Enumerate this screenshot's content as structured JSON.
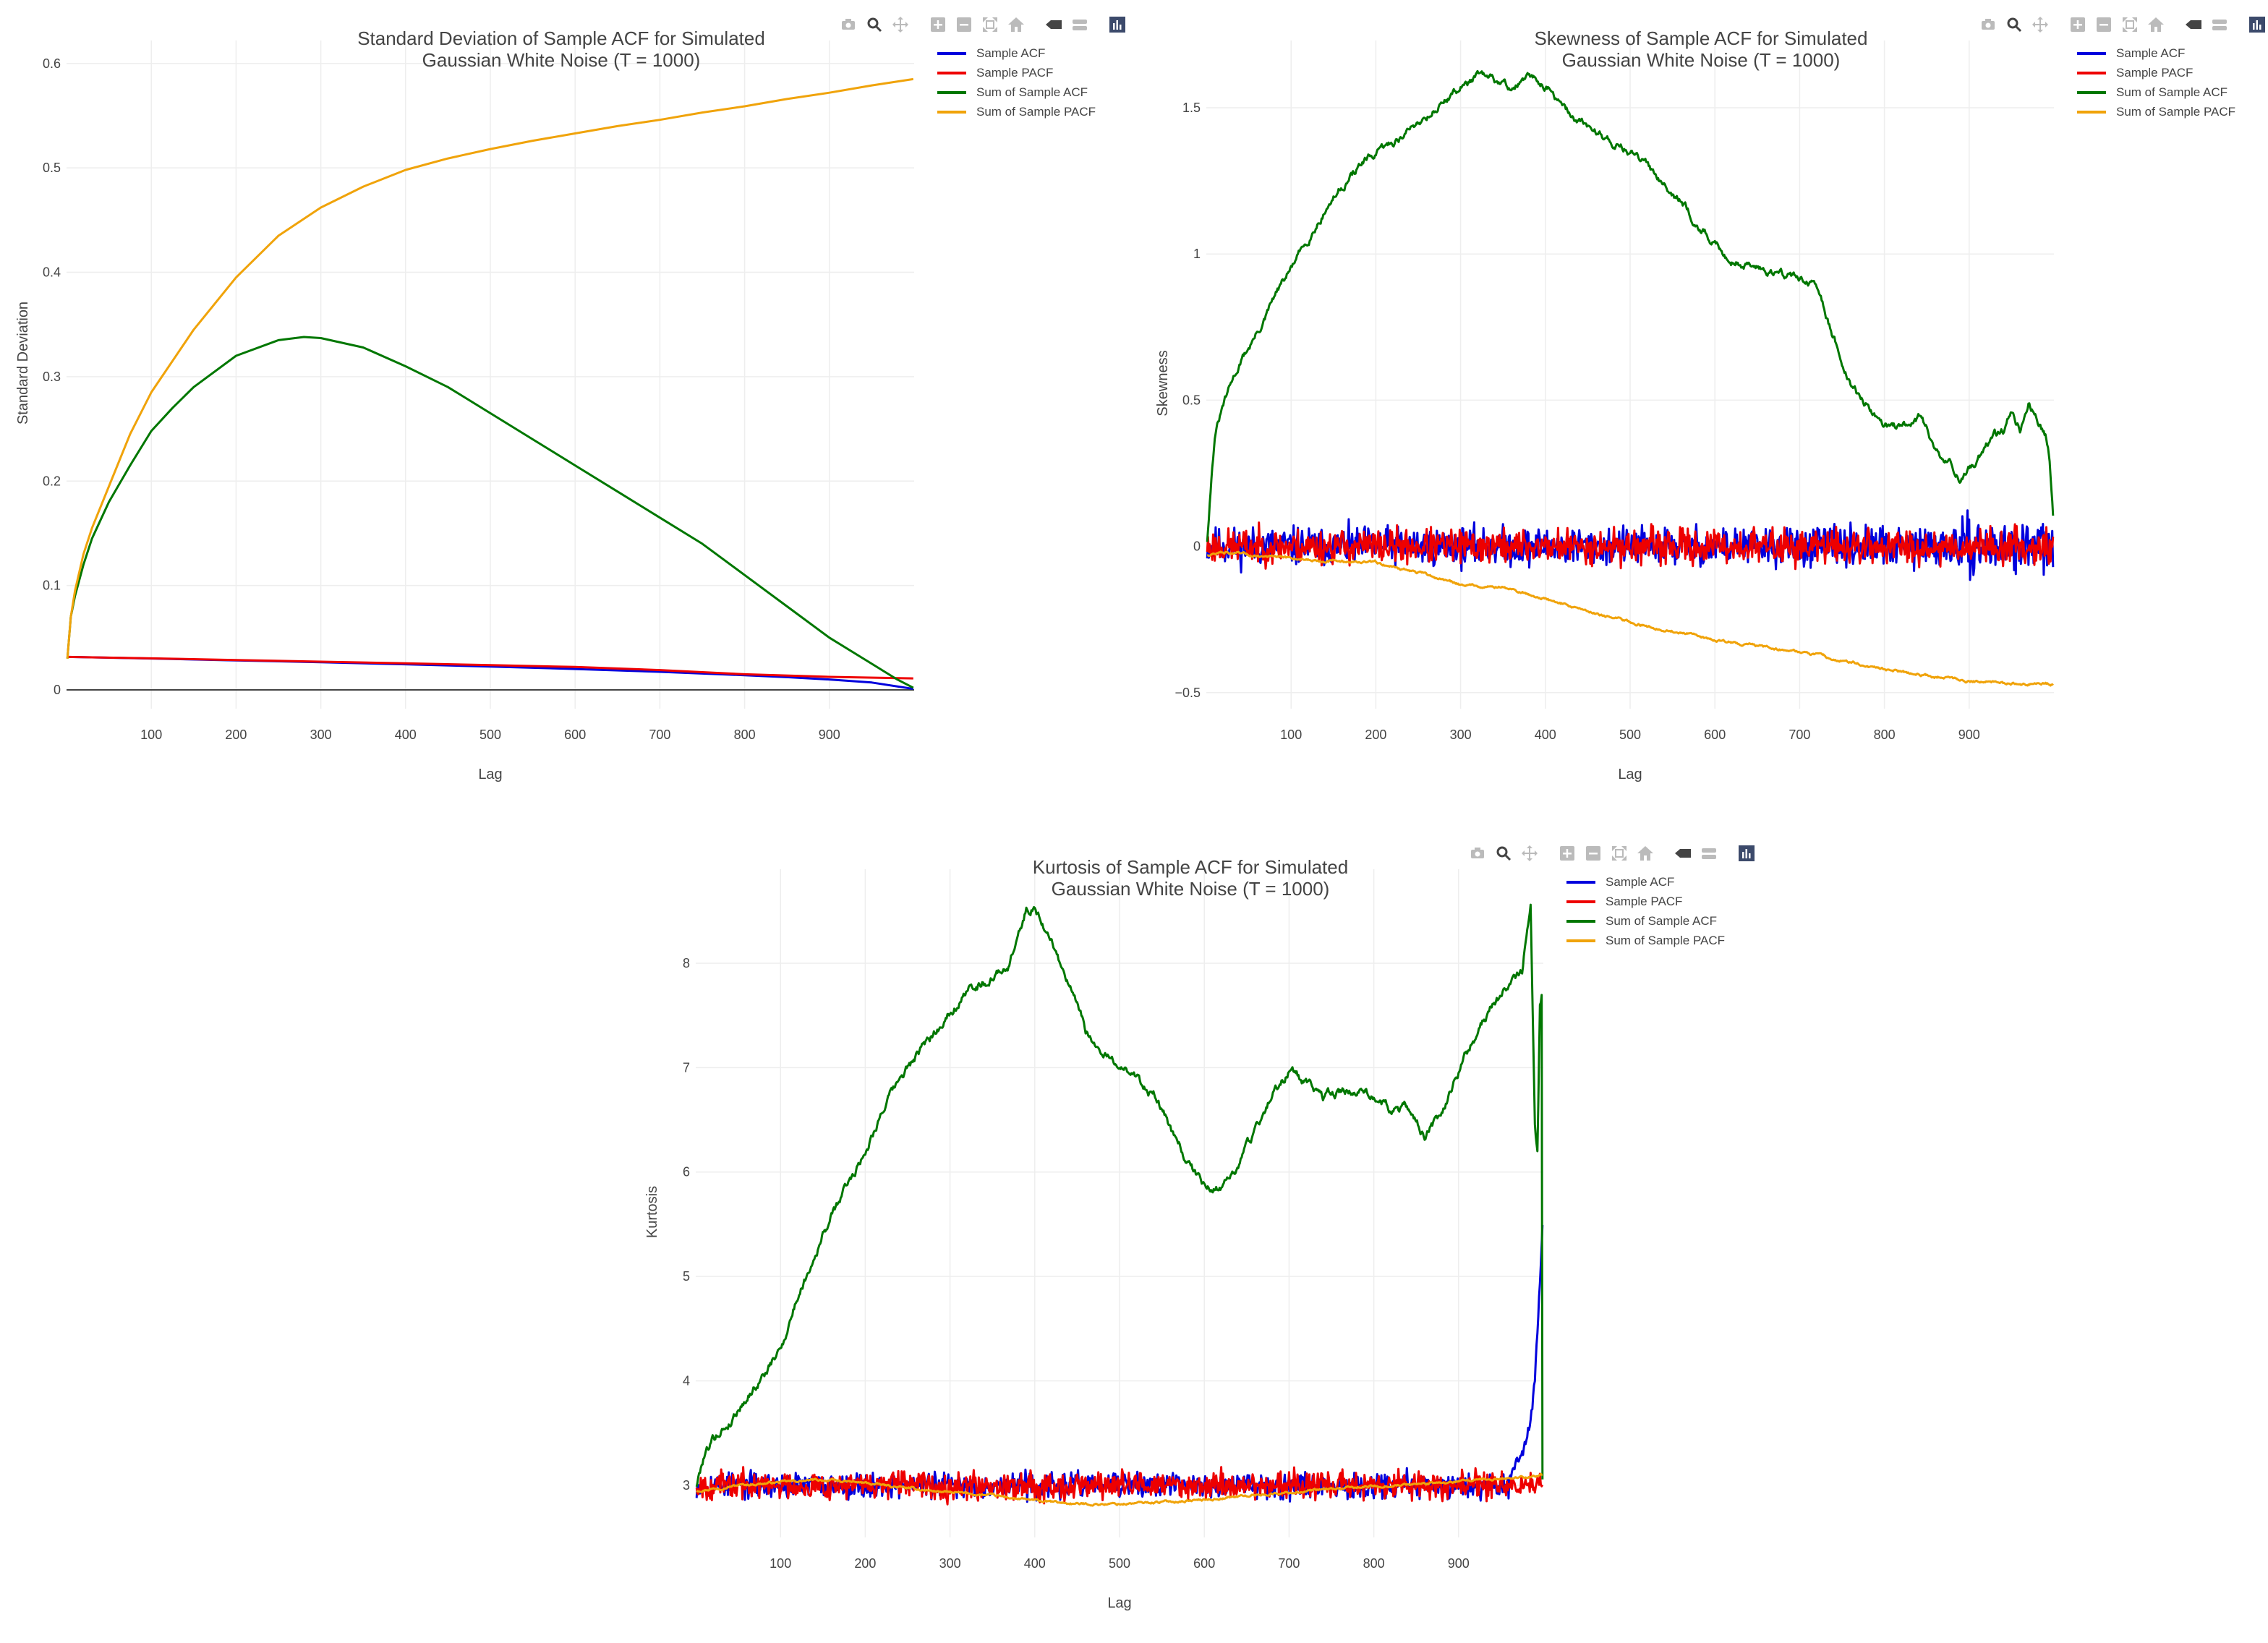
{
  "colors": {
    "acf": "#0000dd",
    "pacf": "#ee0000",
    "sum_acf": "#007700",
    "sum_pacf": "#f0a30a",
    "grid": "#eeeeee",
    "zero_line": "#444444",
    "text": "#444444",
    "modebar_icon": "#bbbbbb",
    "modebar_logo": "#3c4a6b"
  },
  "modebar": {
    "buttons": [
      {
        "name": "camera-icon",
        "title": "Download plot as a png"
      },
      {
        "name": "zoom-icon",
        "title": "Zoom"
      },
      {
        "name": "pan-icon",
        "title": "Pan"
      },
      {
        "name": "zoom-in-icon",
        "title": "Zoom in"
      },
      {
        "name": "zoom-out-icon",
        "title": "Zoom out"
      },
      {
        "name": "autoscale-icon",
        "title": "Autoscale"
      },
      {
        "name": "home-icon",
        "title": "Reset axes"
      },
      {
        "name": "spike-lines-icon",
        "title": "Toggle Spike Lines"
      },
      {
        "name": "hover-compare-icon",
        "title": "Compare data on hover"
      },
      {
        "name": "plotly-logo-icon",
        "title": "Produced with Plotly"
      }
    ]
  },
  "chart_data": [
    {
      "id": "std",
      "type": "line",
      "title": [
        "Standard Deviation of Sample ACF for Simulated",
        "Gaussian White Noise (T = 1000)"
      ],
      "xlabel": "Lag",
      "ylabel": "Standard Deviation",
      "xlim": [
        0,
        1000
      ],
      "ylim": [
        -0.018,
        0.622
      ],
      "xticks": [
        100,
        200,
        300,
        400,
        500,
        600,
        700,
        800,
        900
      ],
      "yticks": [
        0,
        0.1,
        0.2,
        0.3,
        0.4,
        0.5,
        0.6
      ],
      "ytick_labels": [
        "0",
        "0.1",
        "0.2",
        "0.3",
        "0.4",
        "0.5",
        "0.6"
      ],
      "zero_line": true,
      "legend": [
        "Sample ACF",
        "Sample PACF",
        "Sum of Sample ACF",
        "Sum of Sample PACF"
      ],
      "series": [
        {
          "name": "Sample ACF",
          "key": "acf",
          "x": [
            1,
            100,
            200,
            300,
            400,
            500,
            600,
            700,
            800,
            850,
            900,
            950,
            999
          ],
          "y": [
            0.0316,
            0.0301,
            0.0283,
            0.0265,
            0.0245,
            0.0224,
            0.02,
            0.0173,
            0.0141,
            0.0122,
            0.01,
            0.0071,
            0.001
          ]
        },
        {
          "name": "Sample PACF",
          "key": "pacf",
          "x": [
            1,
            100,
            200,
            300,
            400,
            500,
            600,
            700,
            800,
            900,
            999
          ],
          "y": [
            0.0316,
            0.0302,
            0.0286,
            0.027,
            0.0254,
            0.0237,
            0.022,
            0.019,
            0.015,
            0.0125,
            0.011
          ]
        },
        {
          "name": "Sum of Sample ACF",
          "key": "sum_acf",
          "x": [
            1,
            5,
            10,
            20,
            30,
            50,
            75,
            100,
            125,
            150,
            200,
            250,
            280,
            300,
            350,
            400,
            450,
            500,
            550,
            600,
            650,
            700,
            750,
            800,
            850,
            900,
            950,
            980,
            999
          ],
          "y": [
            0.03,
            0.07,
            0.09,
            0.12,
            0.145,
            0.18,
            0.215,
            0.248,
            0.27,
            0.29,
            0.32,
            0.335,
            0.338,
            0.337,
            0.328,
            0.31,
            0.29,
            0.265,
            0.24,
            0.215,
            0.19,
            0.165,
            0.14,
            0.11,
            0.08,
            0.05,
            0.025,
            0.01,
            0.002
          ]
        },
        {
          "name": "Sum of Sample PACF",
          "key": "sum_pacf",
          "x": [
            1,
            5,
            10,
            20,
            30,
            50,
            75,
            100,
            150,
            200,
            250,
            300,
            350,
            400,
            450,
            500,
            550,
            600,
            650,
            700,
            750,
            800,
            850,
            900,
            950,
            999
          ],
          "y": [
            0.03,
            0.07,
            0.095,
            0.13,
            0.155,
            0.195,
            0.245,
            0.285,
            0.345,
            0.395,
            0.435,
            0.462,
            0.482,
            0.498,
            0.509,
            0.518,
            0.526,
            0.533,
            0.54,
            0.546,
            0.553,
            0.559,
            0.566,
            0.572,
            0.579,
            0.585
          ]
        }
      ]
    },
    {
      "id": "skew",
      "type": "line",
      "title": [
        "Skewness of Sample ACF for Simulated",
        "Gaussian White Noise (T = 1000)"
      ],
      "xlabel": "Lag",
      "ylabel": "Skewness",
      "xlim": [
        0,
        1000
      ],
      "ylim": [
        -0.555,
        1.73
      ],
      "xticks": [
        100,
        200,
        300,
        400,
        500,
        600,
        700,
        800,
        900
      ],
      "yticks": [
        -0.5,
        0,
        0.5,
        1,
        1.5
      ],
      "ytick_labels": [
        "−0.5",
        "0",
        "0.5",
        "1",
        "1.5"
      ],
      "zero_line": false,
      "legend": [
        "Sample ACF",
        "Sample PACF",
        "Sum of Sample ACF",
        "Sum of Sample PACF"
      ],
      "series": [
        {
          "name": "Sample ACF",
          "key": "acf",
          "noise": {
            "center": 0.0,
            "amp": 0.05,
            "seed": 11,
            "tail_amp": 0.065
          }
        },
        {
          "name": "Sample PACF",
          "key": "pacf",
          "noise": {
            "center": 0.0,
            "amp": 0.045,
            "seed": 23
          }
        },
        {
          "name": "Sum of Sample ACF",
          "key": "sum_acf",
          "noise_amp": 0.018,
          "seed": 31,
          "x": [
            1,
            5,
            10,
            20,
            30,
            40,
            50,
            60,
            70,
            80,
            90,
            100,
            120,
            140,
            160,
            180,
            200,
            220,
            250,
            280,
            300,
            320,
            340,
            360,
            380,
            400,
            420,
            440,
            460,
            480,
            500,
            520,
            540,
            560,
            580,
            600,
            620,
            640,
            660,
            680,
            700,
            720,
            740,
            760,
            780,
            800,
            820,
            840,
            850,
            860,
            870,
            880,
            890,
            900,
            910,
            920,
            930,
            940,
            950,
            960,
            970,
            980,
            990,
            995,
            999
          ],
          "y": [
            0.02,
            0.2,
            0.38,
            0.48,
            0.56,
            0.63,
            0.68,
            0.73,
            0.78,
            0.85,
            0.9,
            0.95,
            1.05,
            1.15,
            1.23,
            1.3,
            1.34,
            1.38,
            1.45,
            1.52,
            1.57,
            1.61,
            1.59,
            1.57,
            1.6,
            1.58,
            1.5,
            1.45,
            1.42,
            1.38,
            1.35,
            1.3,
            1.25,
            1.18,
            1.1,
            1.03,
            0.98,
            0.96,
            0.95,
            0.93,
            0.92,
            0.88,
            0.72,
            0.55,
            0.48,
            0.42,
            0.4,
            0.44,
            0.4,
            0.33,
            0.29,
            0.28,
            0.22,
            0.26,
            0.3,
            0.35,
            0.38,
            0.39,
            0.46,
            0.4,
            0.5,
            0.44,
            0.38,
            0.3,
            0.12
          ]
        },
        {
          "name": "Sum of Sample PACF",
          "key": "sum_pacf",
          "noise_amp": 0.006,
          "seed": 47,
          "x": [
            1,
            20,
            50,
            100,
            150,
            200,
            250,
            300,
            350,
            400,
            450,
            500,
            550,
            600,
            650,
            700,
            750,
            800,
            850,
            900,
            950,
            999
          ],
          "y": [
            -0.03,
            -0.02,
            -0.03,
            -0.04,
            -0.05,
            -0.055,
            -0.09,
            -0.13,
            -0.14,
            -0.18,
            -0.22,
            -0.26,
            -0.29,
            -0.32,
            -0.34,
            -0.36,
            -0.39,
            -0.42,
            -0.44,
            -0.46,
            -0.47,
            -0.47
          ]
        }
      ]
    },
    {
      "id": "kurt",
      "type": "line",
      "title": [
        "Kurtosis of Sample ACF for Simulated",
        "Gaussian White Noise (T = 1000)"
      ],
      "xlabel": "Lag",
      "ylabel": "Kurtosis",
      "xlim": [
        0,
        1000
      ],
      "ylim": [
        2.5,
        8.9
      ],
      "xticks": [
        100,
        200,
        300,
        400,
        500,
        600,
        700,
        800,
        900
      ],
      "yticks": [
        3,
        4,
        5,
        6,
        7,
        8
      ],
      "ytick_labels": [
        "3",
        "4",
        "5",
        "6",
        "7",
        "8"
      ],
      "zero_line": false,
      "legend": [
        "Sample ACF",
        "Sample PACF",
        "Sum of Sample ACF",
        "Sum of Sample PACF"
      ],
      "series": [
        {
          "name": "Sample ACF",
          "key": "acf",
          "noise": {
            "center": 3.0,
            "amp": 0.09,
            "seed": 53,
            "spike": {
              "start": 960,
              "x": [
                960,
                975,
                985,
                990,
                995,
                999
              ],
              "y": [
                3.1,
                3.3,
                3.6,
                4.0,
                4.8,
                5.5
              ]
            }
          }
        },
        {
          "name": "Sample PACF",
          "key": "pacf",
          "noise": {
            "center": 3.0,
            "amp": 0.1,
            "seed": 67
          }
        },
        {
          "name": "Sum of Sample ACF",
          "key": "sum_acf",
          "noise_amp": 0.06,
          "seed": 79,
          "x": [
            1,
            10,
            20,
            40,
            60,
            80,
            100,
            120,
            150,
            180,
            200,
            220,
            250,
            280,
            300,
            330,
            350,
            370,
            390,
            400,
            420,
            440,
            460,
            480,
            500,
            520,
            540,
            560,
            580,
            600,
            620,
            640,
            660,
            680,
            700,
            720,
            740,
            760,
            780,
            800,
            820,
            840,
            860,
            880,
            900,
            920,
            940,
            960,
            975,
            985,
            990,
            993,
            996,
            998,
            999
          ],
          "y": [
            3.0,
            3.3,
            3.45,
            3.6,
            3.85,
            4.05,
            4.3,
            4.8,
            5.4,
            5.9,
            6.2,
            6.6,
            7.0,
            7.3,
            7.55,
            7.8,
            7.85,
            8.0,
            8.5,
            8.55,
            8.2,
            7.8,
            7.35,
            7.1,
            7.05,
            6.9,
            6.75,
            6.4,
            6.1,
            5.85,
            5.85,
            6.05,
            6.4,
            6.75,
            6.95,
            6.85,
            6.7,
            6.75,
            6.8,
            6.75,
            6.6,
            6.6,
            6.35,
            6.55,
            6.95,
            7.3,
            7.6,
            7.8,
            7.9,
            8.6,
            6.5,
            6.2,
            7.6,
            7.7,
            3.05
          ]
        },
        {
          "name": "Sum of Sample PACF",
          "key": "sum_pacf",
          "noise_amp": 0.015,
          "seed": 97,
          "x": [
            1,
            50,
            100,
            150,
            200,
            250,
            300,
            350,
            400,
            450,
            500,
            550,
            600,
            650,
            700,
            750,
            800,
            850,
            900,
            950,
            999
          ],
          "y": [
            2.95,
            3.0,
            3.03,
            3.05,
            3.02,
            2.97,
            2.93,
            2.9,
            2.85,
            2.82,
            2.82,
            2.84,
            2.86,
            2.9,
            2.93,
            2.96,
            2.99,
            3.01,
            3.03,
            3.06,
            3.1
          ]
        }
      ]
    }
  ]
}
